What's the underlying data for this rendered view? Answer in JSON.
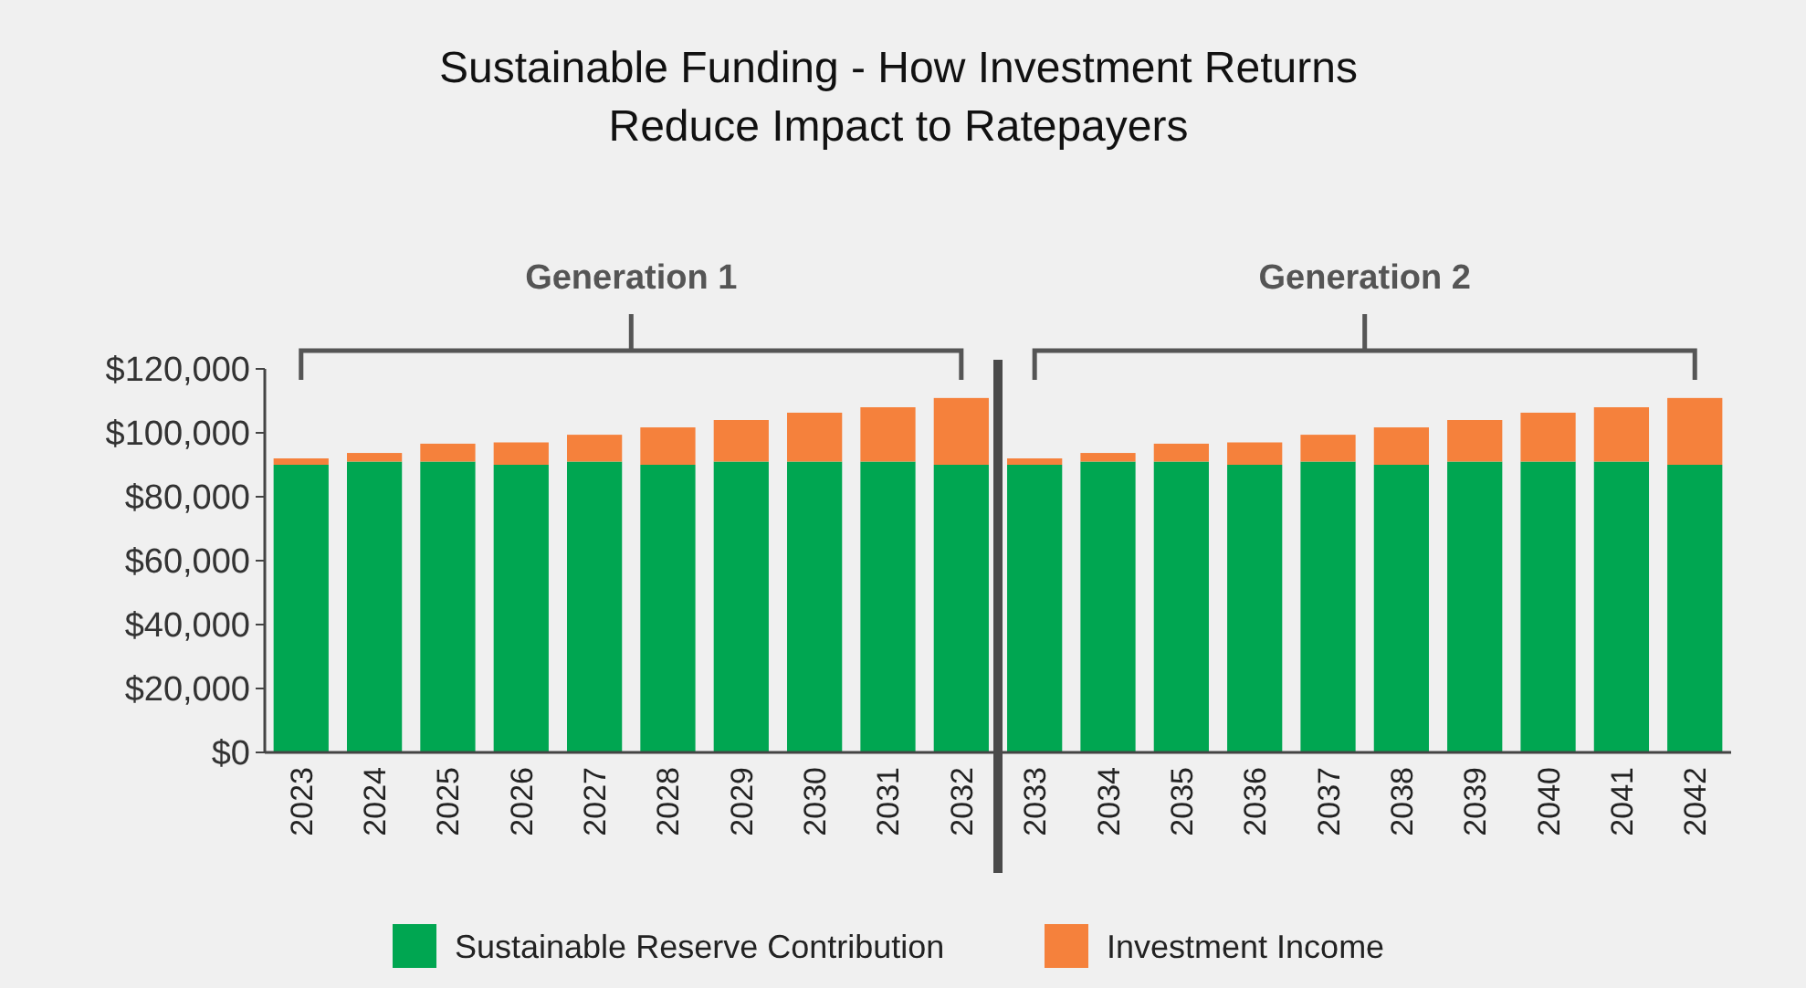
{
  "chart_data": {
    "type": "bar",
    "title": "Sustainable Funding - How Investment Returns\nReduce Impact to Ratepayers",
    "categories": [
      "2023",
      "2024",
      "2025",
      "2026",
      "2027",
      "2028",
      "2029",
      "2030",
      "2031",
      "2032",
      "2033",
      "2034",
      "2035",
      "2036",
      "2037",
      "2038",
      "2039",
      "2040",
      "2041",
      "2042"
    ],
    "stacked": true,
    "series": [
      {
        "name": "Sustainable Reserve Contribution",
        "color": "#00a651",
        "values": [
          90000,
          91000,
          91000,
          90000,
          91000,
          90000,
          91000,
          91000,
          91000,
          90000,
          90000,
          91000,
          91000,
          90000,
          91000,
          90000,
          91000,
          91000,
          91000,
          90000
        ]
      },
      {
        "name": "Investment Income",
        "color": "#f5813c",
        "values": [
          2000,
          2700,
          5600,
          7000,
          8400,
          11700,
          13000,
          15300,
          17000,
          20900,
          2000,
          2700,
          5600,
          7000,
          8400,
          11700,
          13000,
          15300,
          17000,
          20900
        ]
      }
    ],
    "ylim": [
      0,
      120000
    ],
    "yticks": [
      {
        "value": 0,
        "label": "$0"
      },
      {
        "value": 20000,
        "label": "$20,000"
      },
      {
        "value": 40000,
        "label": "$40,000"
      },
      {
        "value": 60000,
        "label": "$60,000"
      },
      {
        "value": 80000,
        "label": "$80,000"
      },
      {
        "value": 100000,
        "label": "$100,000"
      },
      {
        "value": 120000,
        "label": "$120,000"
      }
    ],
    "grid": false,
    "legend": "bottom",
    "annotations": [
      "Generation 1",
      "Generation 2"
    ]
  }
}
